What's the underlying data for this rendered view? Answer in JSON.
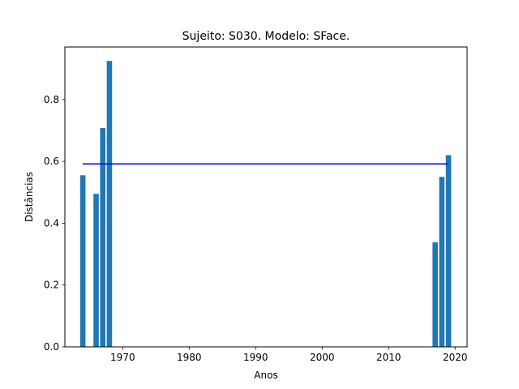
{
  "chart_data": {
    "type": "bar",
    "title": "Sujeito: S030. Modelo: SFace.",
    "xlabel": "Anos",
    "ylabel": "Distâncias",
    "x": [
      1964,
      1966,
      1967,
      1968,
      2017,
      2018,
      2019
    ],
    "values": [
      0.555,
      0.495,
      0.708,
      0.925,
      0.338,
      0.55,
      0.62
    ],
    "reference_line": {
      "value": 0.592,
      "x_range": [
        1964,
        2019
      ],
      "color": "#0000ff"
    },
    "xlim": [
      1961.3,
      2021.8
    ],
    "ylim": [
      0,
      0.97
    ],
    "xticks": [
      1970,
      1980,
      1990,
      2000,
      2010,
      2020
    ],
    "yticks": [
      0.0,
      0.2,
      0.4,
      0.6,
      0.8
    ],
    "bar_color": "#1f77b4",
    "grid": false,
    "legend": false
  }
}
